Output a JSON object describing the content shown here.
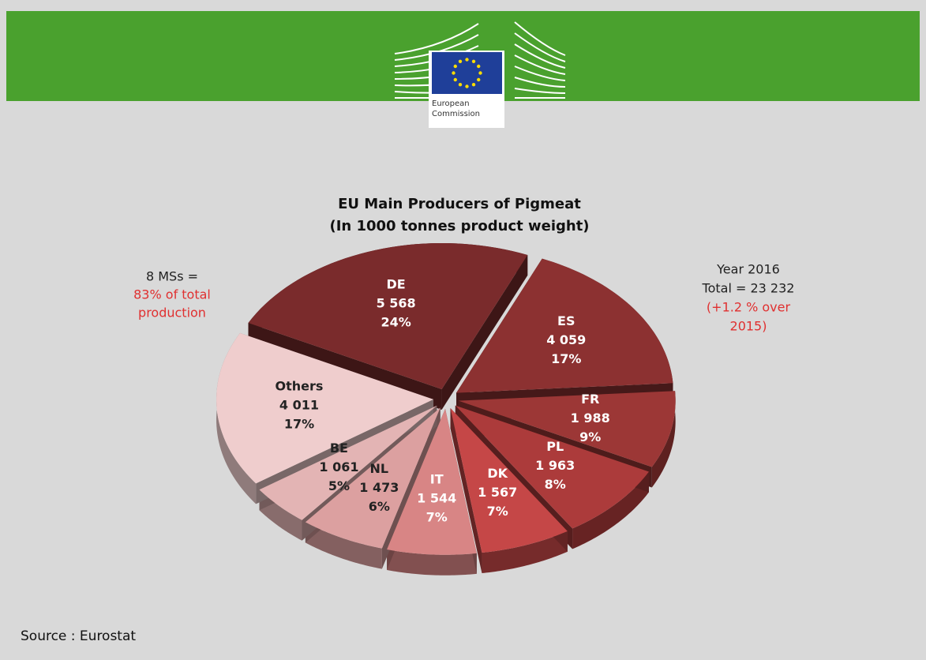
{
  "header": {
    "logo_lines": [
      "European",
      "Commission"
    ]
  },
  "chart_data": {
    "type": "pie3d",
    "title": "EU Main Producers of Pigmeat",
    "subtitle": "(In 1000 tonnes product weight)",
    "categories": [
      "DE",
      "ES",
      "FR",
      "PL",
      "DK",
      "IT",
      "NL",
      "BE",
      "Others"
    ],
    "values": [
      5568,
      4059,
      1988,
      1963,
      1567,
      1544,
      1473,
      1061,
      4011
    ],
    "value_labels": [
      "5 568",
      "4 059",
      "1 988",
      "1 963",
      "1 567",
      "1 544",
      "1 473",
      "1 061",
      "4 011"
    ],
    "percent_labels": [
      "24%",
      "17%",
      "9%",
      "8%",
      "7%",
      "7%",
      "6%",
      "5%",
      "17%"
    ],
    "colors": [
      "#7a2b2c",
      "#8c3131",
      "#9c3736",
      "#ac3b3b",
      "#c54747",
      "#d88585",
      "#dca0a0",
      "#e3b4b4",
      "#efcdcd"
    ],
    "annotations_left": [
      {
        "text": "8 MSs =",
        "color": "#222222"
      },
      {
        "text": "83% of total",
        "color": "#e03030"
      },
      {
        "text": "production",
        "color": "#e03030"
      }
    ],
    "annotations_right": [
      {
        "text": "Year 2016",
        "color": "#222222"
      },
      {
        "text": "Total = 23 232",
        "color": "#222222"
      },
      {
        "text": "(+1.2 % over",
        "color": "#e03030"
      },
      {
        "text": "2015)",
        "color": "#e03030"
      }
    ]
  },
  "source": "Source : Eurostat"
}
